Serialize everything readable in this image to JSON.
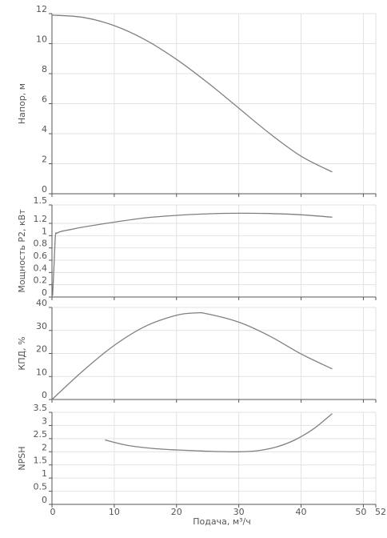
{
  "x_axis": {
    "label": "Подача, м³/ч",
    "ticks": [
      "0",
      "10",
      "20",
      "30",
      "40",
      "50",
      "52"
    ]
  },
  "colors": {
    "curve": "#808080",
    "grid": "#e2e2e2",
    "axis": "#555555",
    "text": "#555555"
  },
  "chart_data": [
    {
      "type": "line",
      "title": "",
      "xlabel": "",
      "ylabel": "Напор, м",
      "xlim": [
        0,
        52
      ],
      "ylim": [
        0,
        12
      ],
      "xticks": [
        0,
        10,
        20,
        30,
        40,
        50,
        52
      ],
      "yticks": [
        0,
        2,
        4,
        6,
        8,
        10,
        12
      ],
      "ytick_labels": [
        "0",
        "2",
        "4",
        "6",
        "8",
        "10",
        "12"
      ],
      "grid": true,
      "series": [
        {
          "x": [
            0,
            5,
            10,
            15,
            20,
            25,
            30,
            35,
            40,
            45
          ],
          "y": [
            11.9,
            11.75,
            11.2,
            10.25,
            8.95,
            7.4,
            5.7,
            4.0,
            2.5,
            1.45
          ]
        }
      ]
    },
    {
      "type": "line",
      "title": "",
      "xlabel": "",
      "ylabel": "Мощность P2, кВт",
      "xlim": [
        0,
        52
      ],
      "ylim": [
        0,
        1.5
      ],
      "xticks": [
        0,
        10,
        20,
        30,
        40,
        50,
        52
      ],
      "yticks": [
        0,
        0.2,
        0.4,
        0.6,
        0.8,
        1.0,
        1.2,
        1.5
      ],
      "ytick_labels": [
        "0",
        "0.2",
        "0.4",
        "0.6",
        "0.8",
        "1",
        "1.2",
        "1.5"
      ],
      "grid": true,
      "series": [
        {
          "x": [
            0.1,
            0.35,
            0.55,
            0.8,
            1.5,
            3,
            5,
            10,
            15,
            20,
            25,
            30,
            35,
            40,
            45
          ],
          "y": [
            0.02,
            0.55,
            1.0,
            1.04,
            1.07,
            1.1,
            1.14,
            1.22,
            1.29,
            1.33,
            1.355,
            1.365,
            1.36,
            1.34,
            1.3
          ]
        }
      ]
    },
    {
      "type": "line",
      "title": "",
      "xlabel": "",
      "ylabel": "КПД, %",
      "xlim": [
        0,
        52
      ],
      "ylim": [
        0,
        40
      ],
      "xticks": [
        0,
        10,
        20,
        30,
        40,
        50,
        52
      ],
      "yticks": [
        0,
        10,
        20,
        30,
        40
      ],
      "ytick_labels": [
        "0",
        "10",
        "20",
        "30",
        "40"
      ],
      "grid": true,
      "series": [
        {
          "x": [
            0,
            5,
            10,
            15,
            20,
            23,
            25,
            30,
            35,
            40,
            45
          ],
          "y": [
            0,
            12.5,
            23.5,
            31.8,
            36.6,
            37.6,
            37.2,
            33.6,
            27.5,
            19.8,
            13.3
          ]
        }
      ]
    },
    {
      "type": "line",
      "title": "",
      "xlabel": "Подача, м³/ч",
      "ylabel": "NPSH",
      "xlim": [
        0,
        52
      ],
      "ylim": [
        0,
        3.5
      ],
      "xticks": [
        0,
        10,
        20,
        30,
        40,
        50,
        52
      ],
      "yticks": [
        0,
        0.5,
        1,
        1.5,
        2,
        2.5,
        3,
        3.5
      ],
      "ytick_labels": [
        "0",
        "0.5",
        "1",
        "1.5",
        "2",
        "2.5",
        "3",
        "3.5"
      ],
      "grid": true,
      "series": [
        {
          "x": [
            8.5,
            12,
            16,
            20,
            25,
            30,
            33,
            36,
            39,
            42,
            45
          ],
          "y": [
            2.45,
            2.25,
            2.13,
            2.07,
            2.02,
            2.0,
            2.04,
            2.18,
            2.45,
            2.87,
            3.45
          ]
        }
      ]
    }
  ]
}
